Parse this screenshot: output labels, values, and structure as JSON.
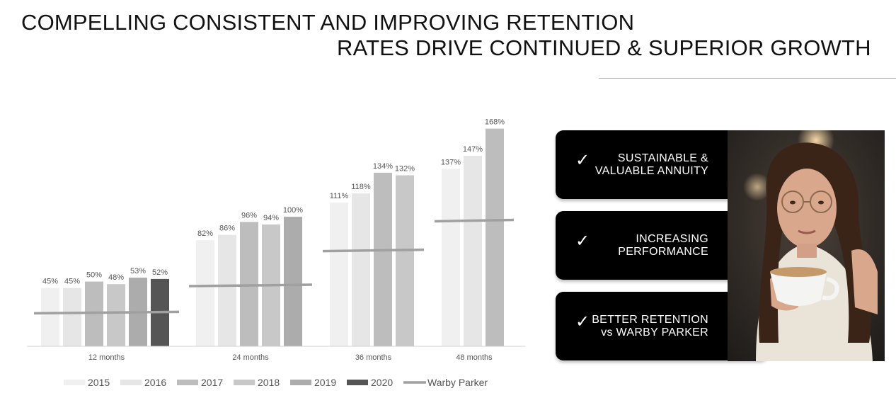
{
  "title": {
    "line1": "COMPELLING CONSISTENT AND IMPROVING RETENTION",
    "line2": "RATES DRIVE CONTINUED & SUPERIOR GROWTH"
  },
  "chart_data": {
    "type": "bar",
    "categories": [
      "12 months",
      "24 months",
      "36 months",
      "48 months"
    ],
    "series": [
      {
        "name": "2015",
        "color": "#f0f0f0",
        "values": [
          45,
          82,
          111,
          137
        ]
      },
      {
        "name": "2016",
        "color": "#e6e6e6",
        "values": [
          45,
          86,
          118,
          147
        ]
      },
      {
        "name": "2017",
        "color": "#bdbdbd",
        "values": [
          50,
          96,
          134,
          168
        ]
      },
      {
        "name": "2018",
        "color": "#c8c8c8",
        "values": [
          48,
          94,
          132,
          null
        ]
      },
      {
        "name": "2019",
        "color": "#acacac",
        "values": [
          53,
          100,
          null,
          null
        ]
      },
      {
        "name": "2020",
        "color": "#555555",
        "values": [
          52,
          null,
          null,
          null
        ]
      }
    ],
    "labels": [
      [
        "45%",
        "82%",
        "111%",
        "137%"
      ],
      [
        "45%",
        "86%",
        "118%",
        "147%"
      ],
      [
        "50%",
        "96%",
        "134%",
        "168%"
      ],
      [
        "48%",
        "94%",
        "132%",
        ""
      ],
      [
        "53%",
        "100%",
        "",
        ""
      ],
      [
        "52%",
        "",
        "",
        ""
      ]
    ],
    "benchmark": {
      "name": "Warby Parker",
      "color": "#a0a0a0",
      "values": [
        26,
        47,
        74,
        97
      ]
    },
    "ylim": [
      0,
      170
    ],
    "legend_position": "bottom"
  },
  "panels": [
    {
      "check": "✓",
      "line1": "SUSTAINABLE &",
      "line2": "VALUABLE ANNUITY"
    },
    {
      "check": "✓",
      "line1": "INCREASING",
      "line2": "PERFORMANCE"
    },
    {
      "check": "✓",
      "line1": "BETTER RETENTION",
      "line2": "vs WARBY PARKER"
    }
  ]
}
